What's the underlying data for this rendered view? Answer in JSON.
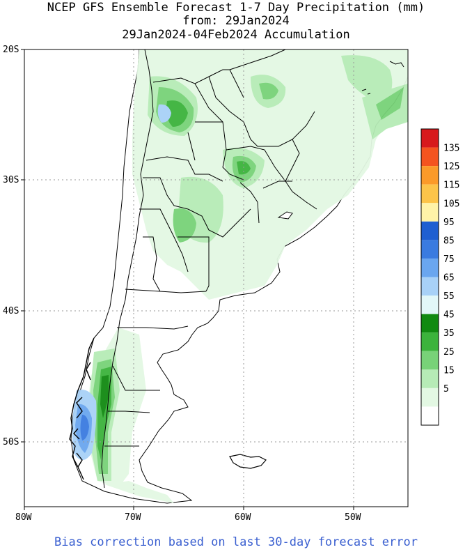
{
  "title": {
    "line1": "NCEP GFS Ensemble Forecast 1-7 Day Precipitation (mm)",
    "line2": "from: 29Jan2024",
    "line3": "29Jan2024-04Feb2024 Accumulation"
  },
  "footer": "Bias correction based on last 30-day forecast error",
  "axes": {
    "lat_labels": [
      "20S",
      "30S",
      "40S",
      "50S"
    ],
    "lon_labels": [
      "80W",
      "70W",
      "60W",
      "50W"
    ]
  },
  "legend": {
    "labels": [
      "135",
      "125",
      "115",
      "105",
      "95",
      "85",
      "75",
      "65",
      "55",
      "45",
      "35",
      "25",
      "15",
      "5"
    ],
    "colors": [
      "#d7191c",
      "#f4541f",
      "#fb9a29",
      "#fcc449",
      "#fff3a8",
      "#1f5fd1",
      "#3a7be0",
      "#6aa6ef",
      "#a8d1f7",
      "#e2f7f8",
      "#118a11",
      "#3cb33c",
      "#78d278",
      "#b6ebb6",
      "#e3f8e3",
      "#ffffff"
    ]
  },
  "colors": {
    "land": "#ffffff",
    "border": "#000000",
    "grid": "#999999",
    "footer_text": "#3a5fd0"
  }
}
